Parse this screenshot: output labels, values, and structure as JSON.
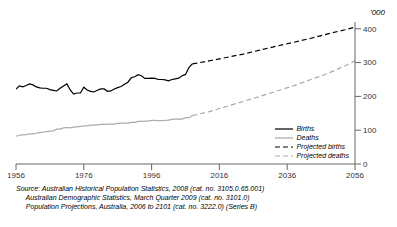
{
  "chart_data": {
    "type": "line",
    "ylabel": "'000",
    "annotations": [
      "Source: Australian Historical Population Statistics, 2008 (cat. no. 3105.0.65.001)",
      "     Australian Demographic Statistics, March Quarter 2009 (cat. no. 3101.0)",
      "     Population Projections, Australia, 2006 to 2101 (cat. no. 3222.0) (Series B)"
    ],
    "x": [
      1956,
      1957,
      1958,
      1959,
      1960,
      1961,
      1962,
      1963,
      1964,
      1965,
      1966,
      1967,
      1968,
      1969,
      1970,
      1971,
      1972,
      1973,
      1974,
      1975,
      1976,
      1977,
      1978,
      1979,
      1980,
      1981,
      1982,
      1983,
      1984,
      1985,
      1986,
      1987,
      1988,
      1989,
      1990,
      1991,
      1992,
      1993,
      1994,
      1995,
      1996,
      1997,
      1998,
      1999,
      2000,
      2001,
      2002,
      2003,
      2004,
      2005,
      2006,
      2007,
      2008,
      2013,
      2018,
      2023,
      2028,
      2033,
      2038,
      2043,
      2048,
      2053,
      2056
    ],
    "series": [
      {
        "name": "Births",
        "color": "#000000",
        "line_style": "solid",
        "values": [
          222,
          231,
          228,
          232,
          237,
          234,
          228,
          225,
          224,
          224,
          220,
          218,
          216,
          224,
          231,
          237,
          219,
          207,
          210,
          210,
          227,
          219,
          215,
          213,
          218,
          222,
          222,
          215,
          216,
          222,
          226,
          229,
          236,
          242,
          255,
          258,
          264,
          261,
          253,
          253,
          254,
          253,
          250,
          250,
          249,
          246,
          250,
          252,
          254,
          261,
          265,
          285,
          296,
          null,
          null,
          null,
          null,
          null,
          null,
          null,
          null,
          null,
          null
        ]
      },
      {
        "name": "Deaths",
        "color": "#aaaaaa",
        "line_style": "solid",
        "values": [
          82,
          85,
          86,
          87,
          89,
          89,
          91,
          93,
          94,
          96,
          97,
          98,
          103,
          103,
          107,
          108,
          107,
          109,
          110,
          111,
          113,
          113,
          115,
          115,
          116,
          117,
          117,
          118,
          118,
          118,
          120,
          121,
          121,
          121,
          123,
          123,
          126,
          126,
          127,
          127,
          129,
          129,
          128,
          128,
          129,
          130,
          132,
          133,
          133,
          133,
          137,
          137,
          143,
          null,
          null,
          null,
          null,
          null,
          null,
          null,
          null,
          null,
          null
        ]
      },
      {
        "name": "Projected births",
        "color": "#000000",
        "line_style": "dashed",
        "values": [
          null,
          null,
          null,
          null,
          null,
          null,
          null,
          null,
          null,
          null,
          null,
          null,
          null,
          null,
          null,
          null,
          null,
          null,
          null,
          null,
          null,
          null,
          null,
          null,
          null,
          null,
          null,
          null,
          null,
          null,
          null,
          null,
          null,
          null,
          null,
          null,
          null,
          null,
          null,
          null,
          null,
          null,
          null,
          null,
          null,
          null,
          null,
          null,
          null,
          null,
          null,
          null,
          296,
          305,
          315,
          325,
          337,
          349,
          360,
          372,
          385,
          397,
          405
        ]
      },
      {
        "name": "Projected deaths",
        "color": "#aaaaaa",
        "line_style": "dashed",
        "values": [
          null,
          null,
          null,
          null,
          null,
          null,
          null,
          null,
          null,
          null,
          null,
          null,
          null,
          null,
          null,
          null,
          null,
          null,
          null,
          null,
          null,
          null,
          null,
          null,
          null,
          null,
          null,
          null,
          null,
          null,
          null,
          null,
          null,
          null,
          null,
          null,
          null,
          null,
          null,
          null,
          null,
          null,
          null,
          null,
          null,
          null,
          null,
          null,
          null,
          null,
          null,
          null,
          143,
          155,
          170,
          185,
          200,
          216,
          232,
          250,
          268,
          290,
          305
        ]
      }
    ],
    "xlim": [
      1956,
      2056
    ],
    "ylim": [
      0,
      420
    ],
    "xticks": [
      1956,
      1976,
      1996,
      2016,
      2036,
      2056
    ],
    "yticks": [
      0,
      100,
      200,
      300,
      400
    ],
    "legend": "lower right",
    "grid": false
  }
}
